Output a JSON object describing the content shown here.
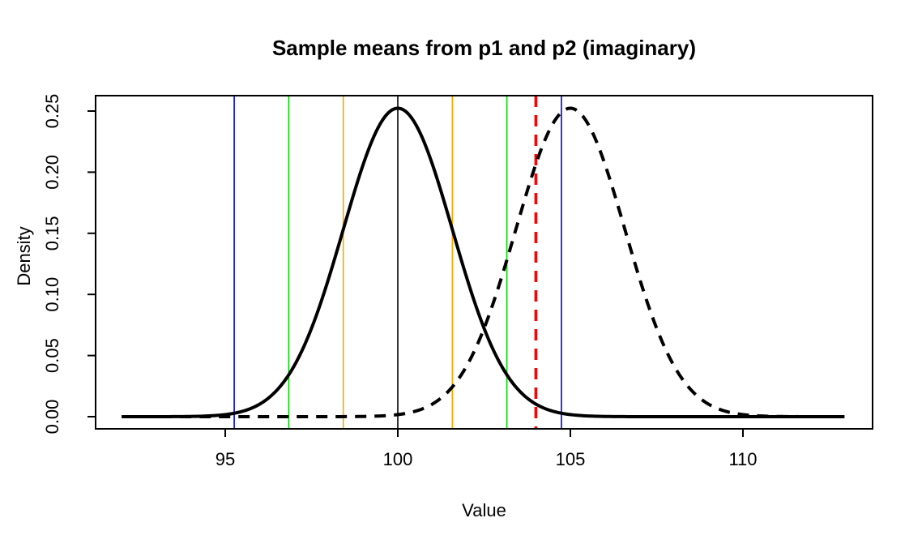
{
  "chart_data": {
    "type": "line",
    "title": "Sample means from p1 and p2 (imaginary)",
    "xlabel": "Value",
    "ylabel": "Density",
    "xlim": [
      91.2,
      113.8
    ],
    "ylim": [
      0,
      0.263
    ],
    "x_ticks": [
      95,
      100,
      105,
      110
    ],
    "y_tick_labels": [
      "0.00",
      "0.05",
      "0.10",
      "0.15",
      "0.20",
      "0.25"
    ],
    "y_tick_values": [
      0.0,
      0.05,
      0.1,
      0.15,
      0.2,
      0.25
    ],
    "grid": false,
    "legend": "none",
    "curve_color": "#000000",
    "series": [
      {
        "name": "p1 sample-mean density",
        "line_style": "solid",
        "color": "#000000",
        "distribution": "normal",
        "mean": 100,
        "sd": 1.5811,
        "x_range": [
          92,
          112.95
        ],
        "peak_density": 0.2523
      },
      {
        "name": "p2 sample-mean density",
        "line_style": "dashed",
        "color": "#000000",
        "distribution": "normal",
        "mean": 105,
        "sd": 1.5811,
        "x_range": [
          92,
          112.95
        ],
        "peak_density": 0.2523
      }
    ],
    "vlines": [
      {
        "x": 95.26,
        "color": "#0000DD",
        "style": "solid",
        "lwd": 1,
        "name": "blue-line-left"
      },
      {
        "x": 96.84,
        "color": "#00DD00",
        "style": "solid",
        "lwd": 1,
        "name": "green-line-left"
      },
      {
        "x": 98.42,
        "color": "#FFA500",
        "style": "solid",
        "lwd": 1,
        "name": "orange-line-left"
      },
      {
        "x": 100.0,
        "color": "#000000",
        "style": "solid",
        "lwd": 1,
        "name": "black-line-center"
      },
      {
        "x": 101.58,
        "color": "#FFA500",
        "style": "solid",
        "lwd": 1,
        "name": "orange-line-right"
      },
      {
        "x": 103.16,
        "color": "#00DD00",
        "style": "solid",
        "lwd": 1,
        "name": "green-line-right"
      },
      {
        "x": 104.0,
        "color": "#FF0000",
        "style": "dashed",
        "lwd": 3,
        "name": "red-dashed-line"
      },
      {
        "x": 104.74,
        "color": "#0000DD",
        "style": "solid",
        "lwd": 1,
        "name": "blue-line-right"
      }
    ]
  }
}
